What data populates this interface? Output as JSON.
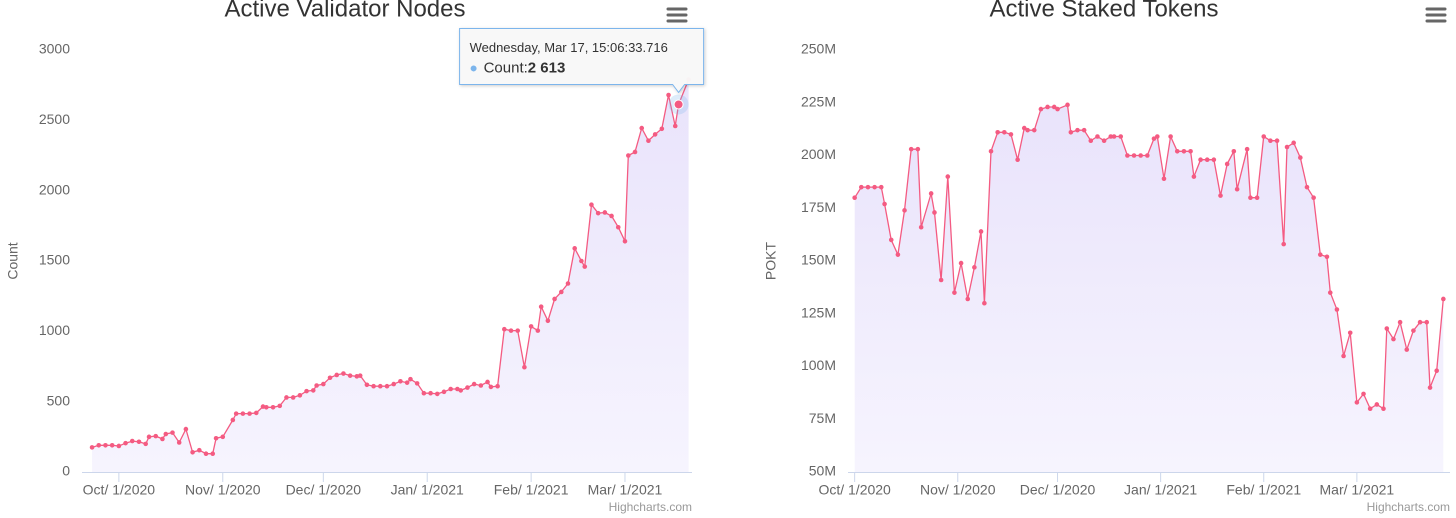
{
  "chart_data": [
    {
      "type": "area",
      "title": "Active Validator Nodes",
      "y_label": "Count",
      "credits": "Highcharts.com",
      "color": "#f45b82",
      "fill_color": "#ebe6fb",
      "grid": false,
      "x": [
        "2020-09-23",
        "2020-09-25",
        "2020-09-27",
        "2020-09-29",
        "2020-10-01",
        "2020-10-03",
        "2020-10-05",
        "2020-10-07",
        "2020-10-09",
        "2020-10-10",
        "2020-10-12",
        "2020-10-14",
        "2020-10-15",
        "2020-10-17",
        "2020-10-19",
        "2020-10-21",
        "2020-10-23",
        "2020-10-25",
        "2020-10-27",
        "2020-10-29",
        "2020-10-30",
        "2020-11-01",
        "2020-11-04",
        "2020-11-05",
        "2020-11-07",
        "2020-11-09",
        "2020-11-11",
        "2020-11-13",
        "2020-11-14",
        "2020-11-16",
        "2020-11-18",
        "2020-11-20",
        "2020-11-22",
        "2020-11-24",
        "2020-11-26",
        "2020-11-28",
        "2020-11-29",
        "2020-12-01",
        "2020-12-03",
        "2020-12-05",
        "2020-12-07",
        "2020-12-09",
        "2020-12-11",
        "2020-12-12",
        "2020-12-14",
        "2020-12-16",
        "2020-12-18",
        "2020-12-20",
        "2020-12-22",
        "2020-12-24",
        "2020-12-26",
        "2020-12-27",
        "2020-12-29",
        "2020-12-31",
        "2021-01-02",
        "2021-01-04",
        "2021-01-06",
        "2021-01-08",
        "2021-01-10",
        "2021-01-11",
        "2021-01-13",
        "2021-01-15",
        "2021-01-17",
        "2021-01-19",
        "2021-01-20",
        "2021-01-22",
        "2021-01-24",
        "2021-01-26",
        "2021-01-28",
        "2021-01-30",
        "2021-02-01",
        "2021-02-03",
        "2021-02-04",
        "2021-02-06",
        "2021-02-08",
        "2021-02-10",
        "2021-02-12",
        "2021-02-14",
        "2021-02-16",
        "2021-02-17",
        "2021-02-19",
        "2021-02-21",
        "2021-02-23",
        "2021-02-25",
        "2021-02-27",
        "2021-03-01",
        "2021-03-02",
        "2021-03-04",
        "2021-03-06",
        "2021-03-08",
        "2021-03-10",
        "2021-03-12",
        "2021-03-14",
        "2021-03-16",
        "2021-03-17",
        "2021-03-20"
      ],
      "values": [
        175,
        190,
        190,
        190,
        185,
        205,
        220,
        215,
        200,
        250,
        255,
        235,
        270,
        280,
        210,
        305,
        140,
        155,
        130,
        130,
        240,
        250,
        370,
        415,
        415,
        415,
        420,
        465,
        460,
        460,
        470,
        530,
        530,
        545,
        575,
        580,
        615,
        625,
        670,
        690,
        700,
        685,
        680,
        685,
        620,
        610,
        610,
        610,
        625,
        645,
        635,
        660,
        630,
        560,
        560,
        555,
        570,
        590,
        590,
        580,
        600,
        625,
        615,
        640,
        605,
        610,
        1015,
        1005,
        1005,
        745,
        1035,
        1005,
        1175,
        1075,
        1230,
        1280,
        1340,
        1590,
        1500,
        1460,
        1900,
        1840,
        1845,
        1820,
        1740,
        1640,
        2250,
        2275,
        2445,
        2355,
        2400,
        2440,
        2680,
        2460,
        2613,
        2790
      ],
      "value_labels": [
        null,
        null,
        null,
        null,
        null,
        null,
        null,
        null,
        null,
        null,
        null,
        null,
        null,
        null,
        null,
        null,
        null,
        null,
        null,
        null,
        null,
        null,
        null,
        null,
        null,
        null,
        null,
        null,
        null,
        null,
        null,
        null,
        null,
        null,
        null,
        null,
        null,
        null,
        null,
        null,
        null,
        null,
        null,
        null,
        null,
        null,
        null,
        null,
        null,
        null,
        null,
        null,
        null,
        null,
        null,
        null,
        null,
        null,
        null,
        null,
        null,
        null,
        null,
        null,
        null,
        null,
        null,
        null,
        null,
        null,
        null,
        null,
        null,
        null,
        null,
        null,
        null,
        null,
        null,
        null,
        null,
        null,
        null,
        null,
        null,
        null,
        null,
        null,
        null,
        null,
        null,
        null,
        null,
        null,
        "2 613",
        null
      ],
      "tooltip": {
        "header": "Wednesday, Mar 17, 15:06:33.716",
        "label": "Count:"
      },
      "xlim": [
        "2020-09-20",
        "2021-03-21"
      ],
      "xticks": [
        {
          "value": "2020-10-01",
          "label": "Oct/ 1/2020"
        },
        {
          "value": "2020-11-01",
          "label": "Nov/ 1/2020"
        },
        {
          "value": "2020-12-01",
          "label": "Dec/ 1/2020"
        },
        {
          "value": "2021-01-01",
          "label": "Jan/ 1/2021"
        },
        {
          "value": "2021-02-01",
          "label": "Feb/ 1/2021"
        },
        {
          "value": "2021-03-01",
          "label": "Mar/ 1/2021"
        }
      ],
      "ylim": [
        0,
        3000
      ],
      "yticks": [
        0,
        500,
        1000,
        1500,
        2000,
        2500,
        3000
      ]
    },
    {
      "type": "area",
      "title": "Active Staked Tokens",
      "y_label": "POKT",
      "credits": "Highcharts.com",
      "color": "#f45b82",
      "fill_color": "#ebe6fb",
      "grid": false,
      "x": [
        "2020-10-01",
        "2020-10-03",
        "2020-10-05",
        "2020-10-07",
        "2020-10-09",
        "2020-10-10",
        "2020-10-12",
        "2020-10-14",
        "2020-10-16",
        "2020-10-18",
        "2020-10-20",
        "2020-10-21",
        "2020-10-24",
        "2020-10-25",
        "2020-10-27",
        "2020-10-29",
        "2020-10-31",
        "2020-11-02",
        "2020-11-04",
        "2020-11-06",
        "2020-11-08",
        "2020-11-09",
        "2020-11-11",
        "2020-11-13",
        "2020-11-15",
        "2020-11-17",
        "2020-11-19",
        "2020-11-21",
        "2020-11-22",
        "2020-11-24",
        "2020-11-26",
        "2020-11-28",
        "2020-11-30",
        "2020-12-01",
        "2020-12-04",
        "2020-12-05",
        "2020-12-07",
        "2020-12-09",
        "2020-12-11",
        "2020-12-13",
        "2020-12-15",
        "2020-12-17",
        "2020-12-18",
        "2020-12-20",
        "2020-12-22",
        "2020-12-24",
        "2020-12-26",
        "2020-12-28",
        "2020-12-30",
        "2020-12-31",
        "2021-01-02",
        "2021-01-04",
        "2021-01-06",
        "2021-01-08",
        "2021-01-10",
        "2021-01-11",
        "2021-01-13",
        "2021-01-15",
        "2021-01-17",
        "2021-01-19",
        "2021-01-21",
        "2021-01-23",
        "2021-01-24",
        "2021-01-27",
        "2021-01-28",
        "2021-01-30",
        "2021-02-01",
        "2021-02-03",
        "2021-02-05",
        "2021-02-07",
        "2021-02-08",
        "2021-02-10",
        "2021-02-12",
        "2021-02-14",
        "2021-02-16",
        "2021-02-18",
        "2021-02-20",
        "2021-02-21",
        "2021-02-23",
        "2021-02-25",
        "2021-02-27",
        "2021-03-01",
        "2021-03-03",
        "2021-03-05",
        "2021-03-07",
        "2021-03-09",
        "2021-03-10",
        "2021-03-12",
        "2021-03-14",
        "2021-03-16",
        "2021-03-18",
        "2021-03-20",
        "2021-03-22",
        "2021-03-23",
        "2021-03-25",
        "2021-03-27"
      ],
      "values": [
        180000000,
        185000000,
        185000000,
        185000000,
        185000000,
        177000000,
        160000000,
        153000000,
        174000000,
        203000000,
        203000000,
        166000000,
        182000000,
        173000000,
        141000000,
        190000000,
        135000000,
        149000000,
        132000000,
        147000000,
        164000000,
        130000000,
        202000000,
        211000000,
        211000000,
        210000000,
        198000000,
        213000000,
        212000000,
        212000000,
        222000000,
        223000000,
        223000000,
        222000000,
        224000000,
        211000000,
        212000000,
        212000000,
        207000000,
        209000000,
        207000000,
        209000000,
        209000000,
        209000000,
        200000000,
        200000000,
        200000000,
        200000000,
        208000000,
        209000000,
        189000000,
        209000000,
        202000000,
        202000000,
        202000000,
        190000000,
        198000000,
        198000000,
        198000000,
        181000000,
        196000000,
        202000000,
        184000000,
        203000000,
        180000000,
        180000000,
        209000000,
        207000000,
        207000000,
        158000000,
        204000000,
        206000000,
        199000000,
        185000000,
        180000000,
        153000000,
        152000000,
        135000000,
        127000000,
        105000000,
        116000000,
        83000000,
        87000000,
        80000000,
        82000000,
        80000000,
        118000000,
        113000000,
        121000000,
        108000000,
        117000000,
        121000000,
        121000000,
        90000000,
        98000000,
        132000000
      ],
      "xlim": [
        "2020-09-29",
        "2021-03-29"
      ],
      "xticks": [
        {
          "value": "2020-10-01",
          "label": "Oct/ 1/2020"
        },
        {
          "value": "2020-11-01",
          "label": "Nov/ 1/2020"
        },
        {
          "value": "2020-12-01",
          "label": "Dec/ 1/2020"
        },
        {
          "value": "2021-01-01",
          "label": "Jan/ 1/2021"
        },
        {
          "value": "2021-02-01",
          "label": "Feb/ 1/2021"
        },
        {
          "value": "2021-03-01",
          "label": "Mar/ 1/2021"
        }
      ],
      "ylim": [
        50000000,
        250000000
      ],
      "yticks": [
        {
          "value": 50000000,
          "label": "50M"
        },
        {
          "value": 75000000,
          "label": "75M"
        },
        {
          "value": 100000000,
          "label": "100M"
        },
        {
          "value": 125000000,
          "label": "125M"
        },
        {
          "value": 150000000,
          "label": "150M"
        },
        {
          "value": 175000000,
          "label": "175M"
        },
        {
          "value": 200000000,
          "label": "200M"
        },
        {
          "value": 225000000,
          "label": "225M"
        },
        {
          "value": 250000000,
          "label": "250M"
        }
      ]
    }
  ]
}
